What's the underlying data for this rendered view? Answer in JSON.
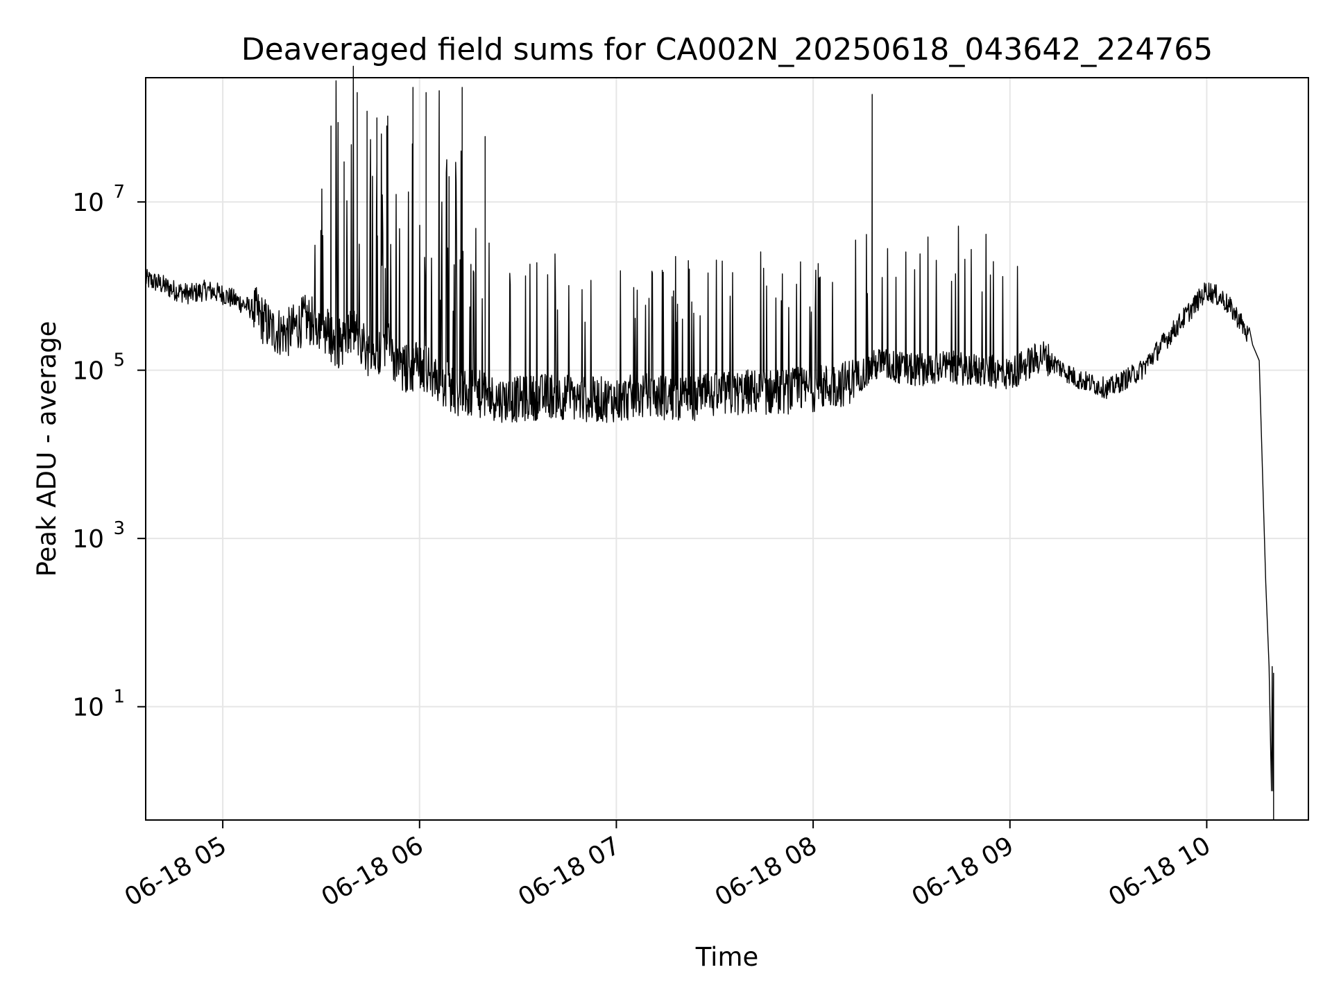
{
  "chart_data": {
    "type": "line",
    "title": "Deaveraged field sums for CA002N_20250618_043642_224765",
    "xlabel": "Time",
    "ylabel": "Peak ADU - average",
    "yscale": "log",
    "ylim": [
      0.45,
      300000000
    ],
    "xlim": [
      "2025-06-18T04:36:30",
      "2025-06-18T10:31:00"
    ],
    "x_ticks": [
      {
        "t": "2025-06-18T05:00:00",
        "label": "06-18 05"
      },
      {
        "t": "2025-06-18T06:00:00",
        "label": "06-18 06"
      },
      {
        "t": "2025-06-18T07:00:00",
        "label": "06-18 07"
      },
      {
        "t": "2025-06-18T08:00:00",
        "label": "06-18 08"
      },
      {
        "t": "2025-06-18T09:00:00",
        "label": "06-18 09"
      },
      {
        "t": "2025-06-18T10:00:00",
        "label": "06-18 10"
      }
    ],
    "y_ticks": [
      {
        "value": 10,
        "base": "10",
        "exp": "1"
      },
      {
        "value": 1000,
        "base": "10",
        "exp": "3"
      },
      {
        "value": 100000,
        "base": "10",
        "exp": "5"
      },
      {
        "value": 10000000,
        "base": "10",
        "exp": "7"
      }
    ],
    "grid": true,
    "line_color": "#000000",
    "grid_color": "#e6e6e6",
    "series": [
      {
        "x": [
          "2025-06-18T04:36:30",
          "2025-06-18T04:40:00",
          "2025-06-18T04:45:00",
          "2025-06-18T04:50:00",
          "2025-06-18T04:55:00",
          "2025-06-18T05:00:00",
          "2025-06-18T05:05:00",
          "2025-06-18T05:10:00",
          "2025-06-18T05:15:00",
          "2025-06-18T05:20:00",
          "2025-06-18T05:25:00",
          "2025-06-18T05:30:00",
          "2025-06-18T05:35:00",
          "2025-06-18T05:40:00",
          "2025-06-18T05:45:00",
          "2025-06-18T05:50:00",
          "2025-06-18T05:55:00",
          "2025-06-18T06:00:00",
          "2025-06-18T06:05:00",
          "2025-06-18T06:10:00",
          "2025-06-18T06:15:00",
          "2025-06-18T06:20:00",
          "2025-06-18T06:25:00",
          "2025-06-18T06:30:00",
          "2025-06-18T06:40:00",
          "2025-06-18T06:50:00",
          "2025-06-18T07:00:00",
          "2025-06-18T07:10:00",
          "2025-06-18T07:20:00",
          "2025-06-18T07:30:00",
          "2025-06-18T07:40:00",
          "2025-06-18T07:50:00",
          "2025-06-18T08:00:00",
          "2025-06-18T08:10:00",
          "2025-06-18T08:20:00",
          "2025-06-18T08:30:00",
          "2025-06-18T08:40:00",
          "2025-06-18T08:50:00",
          "2025-06-18T09:00:00",
          "2025-06-18T09:10:00",
          "2025-06-18T09:20:00",
          "2025-06-18T09:30:00",
          "2025-06-18T09:40:00",
          "2025-06-18T09:50:00",
          "2025-06-18T10:00:00",
          "2025-06-18T10:05:00",
          "2025-06-18T10:10:00",
          "2025-06-18T10:14:00",
          "2025-06-18T10:16:00",
          "2025-06-18T10:18:00",
          "2025-06-18T10:19:00",
          "2025-06-18T10:19:30",
          "2025-06-18T10:19:45"
        ],
        "values": [
          1200000,
          1100000,
          900000,
          800000,
          900000,
          800000,
          650000,
          500000,
          300000,
          280000,
          400000,
          350000,
          200000,
          300000,
          150000,
          200000,
          100000,
          120000,
          80000,
          60000,
          50000,
          50000,
          45000,
          45000,
          50000,
          45000,
          45000,
          50000,
          45000,
          50000,
          55000,
          55000,
          60000,
          70000,
          120000,
          100000,
          110000,
          100000,
          90000,
          150000,
          80000,
          60000,
          100000,
          300000,
          900000,
          700000,
          400000,
          200000,
          130000,
          300,
          30,
          3,
          1
        ]
      }
    ],
    "spikes": [
      {
        "t": "2025-06-18T05:33:00",
        "value": 80000000
      },
      {
        "t": "2025-06-18T05:37:00",
        "value": 30000000
      },
      {
        "t": "2025-06-18T05:41:00",
        "value": 200000000
      },
      {
        "t": "2025-06-18T05:44:00",
        "value": 120000000
      },
      {
        "t": "2025-06-18T05:47:00",
        "value": 100000000
      },
      {
        "t": "2025-06-18T05:50:00",
        "value": 80000000
      },
      {
        "t": "2025-06-18T05:58:00",
        "value": 230000000
      },
      {
        "t": "2025-06-18T06:02:00",
        "value": 200000000
      },
      {
        "t": "2025-06-18T06:06:00",
        "value": 210000000
      },
      {
        "t": "2025-06-18T06:09:00",
        "value": 20000000
      },
      {
        "t": "2025-06-18T06:13:00",
        "value": 230000000
      },
      {
        "t": "2025-06-18T06:20:00",
        "value": 60000000
      },
      {
        "t": "2025-06-18T08:18:00",
        "value": 190000000
      }
    ],
    "legend": null
  }
}
